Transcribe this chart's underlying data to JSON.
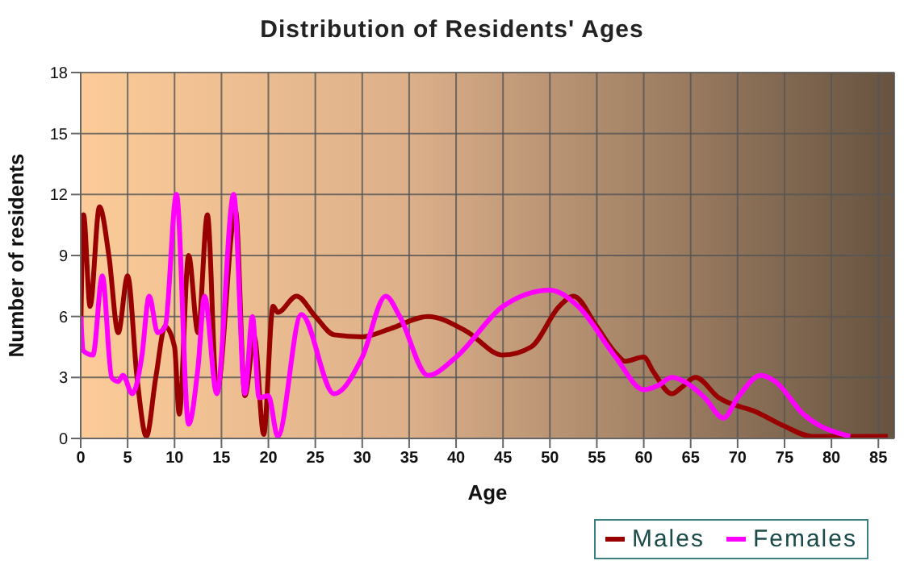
{
  "chart_data": {
    "type": "line",
    "title": "Distribution of Residents' Ages",
    "xlabel": "Age",
    "ylabel": "Number of residents",
    "xlim": [
      0,
      86.7
    ],
    "xticks": [
      0,
      5,
      10,
      15,
      20,
      25,
      30,
      35,
      40,
      45,
      50,
      55,
      60,
      65,
      70,
      75,
      80,
      85
    ],
    "ylim": [
      0,
      18
    ],
    "yticks": [
      0,
      3,
      6,
      9,
      12,
      15,
      18
    ],
    "grid": true,
    "legend": "bottom right",
    "marker": "none",
    "line_style": "solid",
    "series": [
      {
        "name": "Males",
        "color": "#990000",
        "x": [
          0,
          0.3,
          1,
          2,
          3,
          4,
          5,
          6,
          7,
          8,
          9,
          10,
          10.5,
          11.5,
          12.5,
          13.5,
          14.5,
          16.5,
          17.5,
          18.5,
          19.5,
          20.5,
          21,
          23,
          25,
          27,
          30,
          33,
          37,
          41,
          45,
          48,
          51,
          52.5,
          55,
          57,
          58,
          60,
          61,
          63,
          64,
          65.5,
          68,
          72,
          75,
          78,
          86
        ],
        "values": [
          5,
          11,
          6.5,
          11.4,
          9,
          5.2,
          8,
          3,
          0.1,
          3,
          5.5,
          4.5,
          1.2,
          9,
          5.2,
          11,
          2.3,
          11.2,
          2.1,
          5,
          0.2,
          6.5,
          6.2,
          7,
          6,
          5.1,
          5,
          5.4,
          6,
          5.3,
          4.1,
          4.5,
          6.5,
          7,
          5.5,
          4.2,
          3.8,
          4,
          3.3,
          2.2,
          2.5,
          3,
          2,
          1.3,
          0.6,
          0.1,
          0.1
        ]
      },
      {
        "name": "Females",
        "color": "#ff00ff",
        "x": [
          0,
          0.3,
          1.3,
          2.3,
          3.3,
          4,
          4.5,
          5.5,
          6.5,
          7.3,
          8.2,
          9,
          10.2,
          11.5,
          12.5,
          13.2,
          14.5,
          16.3,
          17.5,
          18.3,
          19,
          20,
          21,
          23.5,
          27,
          30,
          32.5,
          34,
          37,
          40,
          45,
          50,
          53,
          57,
          60,
          61.5,
          63,
          65,
          66.5,
          68.5,
          70,
          72.5,
          74,
          77,
          82
        ],
        "values": [
          6,
          4.3,
          4.1,
          8,
          3,
          2.8,
          3.1,
          2.2,
          4,
          7,
          5.2,
          5.5,
          12,
          0.7,
          3.5,
          7,
          2.2,
          12,
          2.2,
          6,
          2,
          2.1,
          0.1,
          6.1,
          2.2,
          4,
          7,
          6,
          3.1,
          4,
          6.5,
          7.3,
          6.5,
          4,
          2.4,
          2.6,
          3,
          2.6,
          2,
          1,
          2,
          3.1,
          2.8,
          1.2,
          0.1
        ]
      }
    ]
  }
}
